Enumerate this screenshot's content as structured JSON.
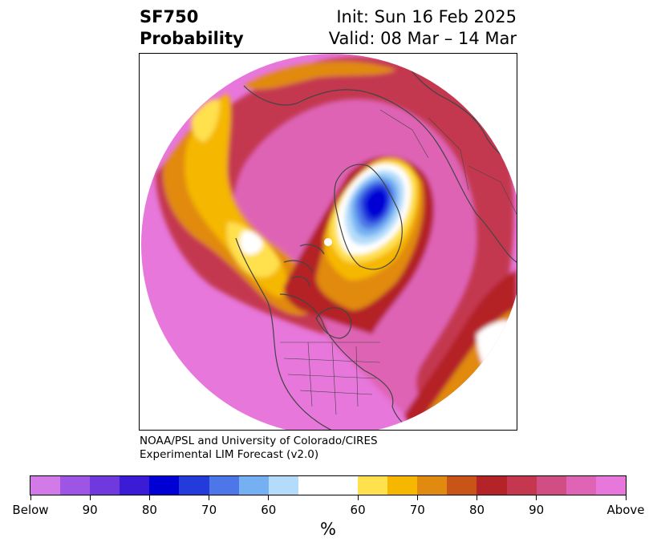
{
  "header": {
    "title_line1": "SF750",
    "title_line2": "Probability",
    "init_text": "Init: Sun 16 Feb 2025",
    "valid_text": "Valid: 08 Mar – 14 Mar"
  },
  "credit": {
    "line1": "NOAA/PSL and University of Colorado/CIRES",
    "line2": "Experimental LIM Forecast (v2.0)"
  },
  "colorbar": {
    "units": "%",
    "colors": [
      "#d17ae8",
      "#9e55e5",
      "#6f39dd",
      "#3b1bd6",
      "#0000d4",
      "#243bdc",
      "#4d77e8",
      "#75b1f2",
      "#b4dcfa",
      "#ffffff",
      "#ffe04d",
      "#f5b700",
      "#e18a10",
      "#c85418",
      "#b42327",
      "#c4374f",
      "#d04e84",
      "#df64b5",
      "#e777db"
    ],
    "labels": [
      "Below",
      "90",
      "80",
      "70",
      "60",
      "60",
      "70",
      "80",
      "90",
      "Above"
    ]
  },
  "map": {
    "projection": "north-polar-stereographic",
    "colors": {
      "above_max": "#e777db",
      "above_90": "#df64b5",
      "above_80": "#c4374f",
      "above_75": "#b42327",
      "above_70": "#e18a10",
      "above_65": "#f5b700",
      "above_60": "#ffe04d",
      "neutral": "#ffffff",
      "below_60": "#b4dcfa",
      "below_65": "#75b1f2",
      "below_70": "#4d77e8",
      "below_80": "#243bdc",
      "below_90": "#0000d4",
      "coastline": "#444444"
    }
  }
}
